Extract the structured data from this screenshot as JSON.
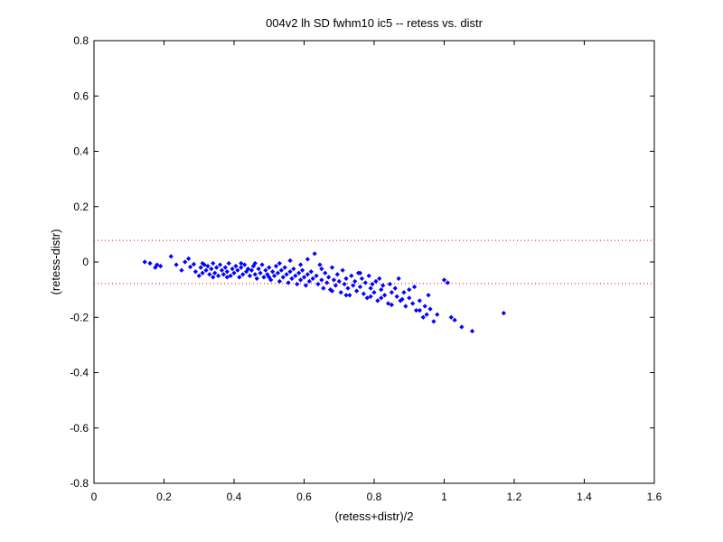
{
  "chart_data": {
    "type": "scatter",
    "title": "004v2 lh SD fwhm10 ic5 -- retess vs. distr",
    "xlabel": "(retess+distr)/2",
    "ylabel": "(retess-distr)",
    "xlim": [
      0,
      1.6
    ],
    "ylim": [
      -0.8,
      0.8
    ],
    "x_ticks": [
      "0",
      "0.2",
      "0.4",
      "0.6",
      "0.8",
      "1",
      "1.2",
      "1.4",
      "1.6"
    ],
    "y_ticks": [
      "-0.8",
      "-0.6",
      "-0.4",
      "-0.2",
      "0",
      "0.2",
      "0.4",
      "0.6",
      "0.8"
    ],
    "grid": false,
    "reference_lines": [
      {
        "y": 0.078,
        "style": "dotted",
        "color": "#ff0000"
      },
      {
        "y": -0.078,
        "style": "dotted",
        "color": "#ff0000"
      }
    ],
    "series": [
      {
        "color": "#0000ff",
        "marker": "diamond",
        "points": [
          [
            0.145,
            0.0
          ],
          [
            0.16,
            -0.005
          ],
          [
            0.175,
            -0.02
          ],
          [
            0.18,
            -0.01
          ],
          [
            0.19,
            -0.015
          ],
          [
            0.22,
            0.02
          ],
          [
            0.235,
            -0.01
          ],
          [
            0.25,
            -0.03
          ],
          [
            0.26,
            0.0
          ],
          [
            0.27,
            0.012
          ],
          [
            0.275,
            -0.018
          ],
          [
            0.285,
            -0.008
          ],
          [
            0.29,
            -0.035
          ],
          [
            0.3,
            -0.05
          ],
          [
            0.305,
            -0.02
          ],
          [
            0.31,
            -0.04
          ],
          [
            0.315,
            -0.01
          ],
          [
            0.32,
            -0.03
          ],
          [
            0.325,
            -0.015
          ],
          [
            0.33,
            -0.045
          ],
          [
            0.335,
            -0.025
          ],
          [
            0.34,
            -0.005
          ],
          [
            0.345,
            -0.04
          ],
          [
            0.35,
            -0.02
          ],
          [
            0.355,
            -0.05
          ],
          [
            0.36,
            -0.01
          ],
          [
            0.365,
            -0.03
          ],
          [
            0.37,
            -0.045
          ],
          [
            0.375,
            -0.02
          ],
          [
            0.38,
            -0.035
          ],
          [
            0.385,
            -0.005
          ],
          [
            0.39,
            -0.05
          ],
          [
            0.395,
            -0.025
          ],
          [
            0.4,
            -0.04
          ],
          [
            0.405,
            -0.015
          ],
          [
            0.41,
            -0.03
          ],
          [
            0.415,
            -0.055
          ],
          [
            0.42,
            -0.02
          ],
          [
            0.425,
            -0.045
          ],
          [
            0.43,
            -0.01
          ],
          [
            0.435,
            -0.035
          ],
          [
            0.44,
            -0.025
          ],
          [
            0.445,
            -0.05
          ],
          [
            0.45,
            -0.03
          ],
          [
            0.455,
            -0.015
          ],
          [
            0.46,
            -0.045
          ],
          [
            0.465,
            -0.06
          ],
          [
            0.47,
            -0.025
          ],
          [
            0.475,
            -0.04
          ],
          [
            0.48,
            -0.01
          ],
          [
            0.485,
            -0.055
          ],
          [
            0.49,
            -0.03
          ],
          [
            0.495,
            -0.045
          ],
          [
            0.5,
            -0.02
          ],
          [
            0.505,
            -0.065
          ],
          [
            0.51,
            -0.035
          ],
          [
            0.515,
            -0.05
          ],
          [
            0.52,
            -0.015
          ],
          [
            0.525,
            -0.04
          ],
          [
            0.53,
            -0.07
          ],
          [
            0.535,
            -0.03
          ],
          [
            0.54,
            -0.055
          ],
          [
            0.545,
            -0.02
          ],
          [
            0.55,
            -0.045
          ],
          [
            0.555,
            -0.075
          ],
          [
            0.56,
            -0.035
          ],
          [
            0.565,
            -0.06
          ],
          [
            0.57,
            -0.025
          ],
          [
            0.575,
            -0.05
          ],
          [
            0.58,
            -0.08
          ],
          [
            0.585,
            -0.04
          ],
          [
            0.59,
            -0.065
          ],
          [
            0.595,
            -0.03
          ],
          [
            0.6,
            -0.055
          ],
          [
            0.605,
            -0.085
          ],
          [
            0.61,
            -0.045
          ],
          [
            0.615,
            -0.07
          ],
          [
            0.62,
            -0.035
          ],
          [
            0.625,
            -0.06
          ],
          [
            0.63,
            0.03
          ],
          [
            0.635,
            -0.05
          ],
          [
            0.64,
            -0.08
          ],
          [
            0.645,
            -0.01
          ],
          [
            0.65,
            -0.065
          ],
          [
            0.655,
            -0.095
          ],
          [
            0.66,
            -0.04
          ],
          [
            0.665,
            -0.075
          ],
          [
            0.67,
            -0.055
          ],
          [
            0.675,
            -0.1
          ],
          [
            0.68,
            -0.02
          ],
          [
            0.685,
            -0.065
          ],
          [
            0.69,
            -0.085
          ],
          [
            0.695,
            -0.045
          ],
          [
            0.7,
            -0.07
          ],
          [
            0.705,
            -0.11
          ],
          [
            0.71,
            -0.03
          ],
          [
            0.715,
            -0.08
          ],
          [
            0.72,
            -0.06
          ],
          [
            0.725,
            -0.095
          ],
          [
            0.73,
            -0.12
          ],
          [
            0.735,
            -0.05
          ],
          [
            0.74,
            -0.085
          ],
          [
            0.745,
            -0.07
          ],
          [
            0.75,
            -0.105
          ],
          [
            0.755,
            -0.04
          ],
          [
            0.76,
            -0.09
          ],
          [
            0.765,
            -0.06
          ],
          [
            0.77,
            -0.115
          ],
          [
            0.775,
            -0.075
          ],
          [
            0.78,
            -0.13
          ],
          [
            0.785,
            -0.05
          ],
          [
            0.79,
            -0.095
          ],
          [
            0.795,
            -0.08
          ],
          [
            0.8,
            -0.11
          ],
          [
            0.805,
            -0.07
          ],
          [
            0.81,
            -0.14
          ],
          [
            0.815,
            -0.06
          ],
          [
            0.82,
            -0.1
          ],
          [
            0.825,
            -0.085
          ],
          [
            0.83,
            -0.12
          ],
          [
            0.84,
            -0.15
          ],
          [
            0.845,
            -0.08
          ],
          [
            0.85,
            -0.11
          ],
          [
            0.86,
            -0.095
          ],
          [
            0.865,
            -0.125
          ],
          [
            0.87,
            -0.06
          ],
          [
            0.875,
            -0.14
          ],
          [
            0.885,
            -0.11
          ],
          [
            0.89,
            -0.16
          ],
          [
            0.9,
            -0.13
          ],
          [
            0.91,
            -0.15
          ],
          [
            0.915,
            -0.09
          ],
          [
            0.92,
            -0.175
          ],
          [
            0.93,
            -0.14
          ],
          [
            0.94,
            -0.2
          ],
          [
            0.945,
            -0.16
          ],
          [
            0.95,
            -0.19
          ],
          [
            0.955,
            -0.12
          ],
          [
            0.96,
            -0.17
          ],
          [
            0.97,
            -0.215
          ],
          [
            0.98,
            -0.19
          ],
          [
            1.0,
            -0.065
          ],
          [
            1.01,
            -0.075
          ],
          [
            1.02,
            -0.2
          ],
          [
            1.03,
            -0.21
          ],
          [
            1.05,
            -0.235
          ],
          [
            1.08,
            -0.25
          ],
          [
            1.17,
            -0.185
          ],
          [
            0.31,
            -0.005
          ],
          [
            0.34,
            -0.055
          ],
          [
            0.38,
            -0.055
          ],
          [
            0.42,
            -0.005
          ],
          [
            0.46,
            -0.005
          ],
          [
            0.5,
            -0.055
          ],
          [
            0.53,
            -0.005
          ],
          [
            0.56,
            0.005
          ],
          [
            0.59,
            -0.01
          ],
          [
            0.61,
            0.01
          ],
          [
            0.65,
            -0.025
          ],
          [
            0.68,
            -0.105
          ],
          [
            0.72,
            -0.12
          ],
          [
            0.76,
            -0.04
          ],
          [
            0.79,
            -0.125
          ],
          [
            0.82,
            -0.13
          ],
          [
            0.85,
            -0.155
          ],
          [
            0.88,
            -0.135
          ],
          [
            0.9,
            -0.1
          ],
          [
            0.93,
            -0.175
          ]
        ]
      }
    ]
  }
}
